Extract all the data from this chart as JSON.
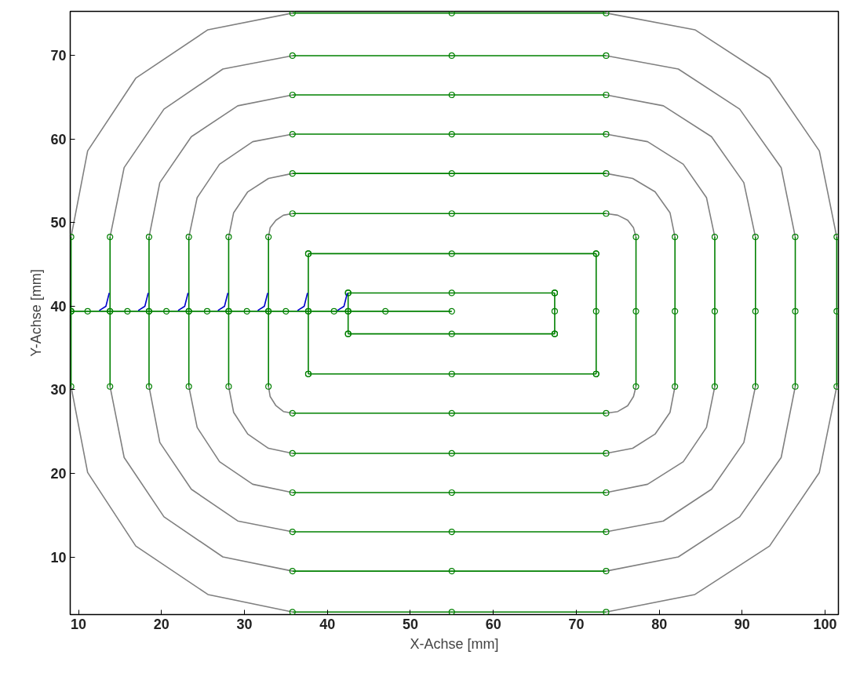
{
  "chart_data": {
    "type": "line",
    "xlabel": "X-Achse [mm]",
    "ylabel": "Y-Achse [mm]",
    "xlim": [
      9.0,
      101.6
    ],
    "ylim": [
      3.1,
      75.3
    ],
    "xticks": [
      10,
      20,
      30,
      40,
      50,
      60,
      70,
      80,
      90,
      100
    ],
    "yticks": [
      10,
      20,
      30,
      40,
      50,
      60,
      70
    ],
    "grid": false,
    "marker": "circle",
    "line_style": "solid",
    "series": [
      {
        "color": "#808080",
        "marker": "none",
        "x": [
          73.6,
          84.3,
          93.3,
          99.3,
          101.4
        ],
        "values": [
          75.1,
          73.1,
          67.3,
          58.6,
          48.3
        ]
      },
      {
        "color": "#808080",
        "marker": "none",
        "x": [
          101.4,
          99.3,
          93.3,
          84.3,
          73.6
        ],
        "values": [
          30.4,
          20.1,
          11.3,
          5.5,
          3.4
        ]
      },
      {
        "color": "#808080",
        "marker": "none",
        "x": [
          35.8,
          25.6,
          16.9,
          11.1,
          9.1
        ],
        "values": [
          3.4,
          5.5,
          11.3,
          20.1,
          30.4
        ]
      },
      {
        "color": "#808080",
        "marker": "none",
        "x": [
          9.1,
          11.1,
          16.9,
          25.6,
          35.8
        ],
        "values": [
          48.3,
          58.6,
          67.3,
          73.1,
          75.1
        ]
      },
      {
        "color": "#808080",
        "marker": "none",
        "x": [
          73.6,
          82.3,
          89.7,
          94.7,
          96.4
        ],
        "values": [
          70.0,
          68.4,
          63.6,
          56.6,
          48.3
        ]
      },
      {
        "color": "#808080",
        "marker": "none",
        "x": [
          96.4,
          94.7,
          89.7,
          82.3,
          73.6
        ],
        "values": [
          30.4,
          21.9,
          14.8,
          10.0,
          8.3
        ]
      },
      {
        "color": "#808080",
        "marker": "none",
        "x": [
          35.8,
          27.4,
          20.3,
          15.5,
          13.8
        ],
        "values": [
          8.3,
          10.0,
          14.8,
          21.9,
          30.4
        ]
      },
      {
        "color": "#808080",
        "marker": "none",
        "x": [
          13.8,
          15.5,
          20.3,
          27.4,
          35.8
        ],
        "values": [
          48.3,
          56.6,
          63.6,
          68.4,
          70.0
        ]
      },
      {
        "color": "#808080",
        "marker": "none",
        "x": [
          73.6,
          80.5,
          86.3,
          90.2,
          91.6
        ],
        "values": [
          65.3,
          64.0,
          60.3,
          54.8,
          48.3
        ]
      },
      {
        "color": "#808080",
        "marker": "none",
        "x": [
          91.6,
          90.2,
          86.3,
          80.5,
          73.6
        ],
        "values": [
          30.4,
          23.7,
          18.1,
          14.3,
          13.0
        ]
      },
      {
        "color": "#808080",
        "marker": "none",
        "x": [
          35.8,
          29.2,
          23.6,
          19.8,
          18.5
        ],
        "values": [
          13.0,
          14.3,
          18.1,
          23.7,
          30.4
        ]
      },
      {
        "color": "#808080",
        "marker": "none",
        "x": [
          18.5,
          19.8,
          23.6,
          29.2,
          35.8
        ],
        "values": [
          48.3,
          54.8,
          60.3,
          64.0,
          65.3
        ]
      },
      {
        "color": "#808080",
        "marker": "none",
        "x": [
          73.6,
          78.6,
          82.9,
          85.7,
          86.7
        ],
        "values": [
          60.6,
          59.7,
          57.0,
          53.0,
          48.3
        ]
      },
      {
        "color": "#808080",
        "marker": "none",
        "x": [
          86.7,
          85.7,
          82.9,
          78.6,
          73.6
        ],
        "values": [
          30.4,
          25.5,
          21.4,
          18.7,
          17.7
        ]
      },
      {
        "color": "#808080",
        "marker": "none",
        "x": [
          35.8,
          31.0,
          27.0,
          24.3,
          23.3
        ],
        "values": [
          17.7,
          18.7,
          21.4,
          25.5,
          30.4
        ]
      },
      {
        "color": "#808080",
        "marker": "none",
        "x": [
          23.3,
          24.3,
          27.0,
          31.0,
          35.8
        ],
        "values": [
          48.3,
          53.0,
          57.0,
          59.7,
          60.6
        ]
      },
      {
        "color": "#808080",
        "marker": "none",
        "x": [
          73.6,
          76.8,
          79.5,
          81.3,
          81.9
        ],
        "values": [
          55.9,
          55.3,
          53.7,
          51.2,
          48.3
        ]
      },
      {
        "color": "#808080",
        "marker": "none",
        "x": [
          81.9,
          81.3,
          79.5,
          76.8,
          73.6
        ],
        "values": [
          30.4,
          27.3,
          24.7,
          23.0,
          22.4
        ]
      },
      {
        "color": "#808080",
        "marker": "none",
        "x": [
          35.8,
          32.9,
          30.4,
          28.7,
          28.1
        ],
        "values": [
          22.4,
          23.0,
          24.7,
          27.3,
          30.4
        ]
      },
      {
        "color": "#808080",
        "marker": "none",
        "x": [
          28.1,
          28.7,
          30.4,
          32.9,
          35.8
        ],
        "values": [
          48.3,
          51.2,
          53.7,
          55.3,
          55.9
        ]
      },
      {
        "color": "#808080",
        "marker": "none",
        "x": [
          73.6,
          75.0,
          76.2,
          76.9,
          77.2
        ],
        "values": [
          51.1,
          50.9,
          50.3,
          49.4,
          48.3
        ]
      },
      {
        "color": "#808080",
        "marker": "none",
        "x": [
          77.2,
          76.9,
          76.2,
          75.0,
          73.6
        ],
        "values": [
          30.4,
          29.2,
          28.1,
          27.4,
          27.2
        ]
      },
      {
        "color": "#808080",
        "marker": "none",
        "x": [
          35.8,
          34.7,
          33.8,
          33.1,
          32.9
        ],
        "values": [
          27.2,
          27.4,
          28.1,
          29.2,
          30.4
        ]
      },
      {
        "color": "#808080",
        "marker": "none",
        "x": [
          32.9,
          33.1,
          33.8,
          34.7,
          35.8
        ],
        "values": [
          48.3,
          49.4,
          50.3,
          50.9,
          51.1
        ]
      },
      {
        "color": "#008000",
        "x": [
          35.8,
          55.0,
          73.6
        ],
        "values": [
          75.1,
          75.1,
          75.1
        ]
      },
      {
        "color": "#008000",
        "x": [
          35.8,
          55.0,
          73.6
        ],
        "values": [
          3.4,
          3.4,
          3.4
        ]
      },
      {
        "color": "#008000",
        "x": [
          9.1,
          9.1,
          9.1
        ],
        "values": [
          48.3,
          39.4,
          30.4
        ]
      },
      {
        "color": "#008000",
        "x": [
          101.4,
          101.4,
          101.4
        ],
        "values": [
          48.3,
          39.4,
          30.4
        ]
      },
      {
        "color": "#008000",
        "x": [
          35.8,
          55.0,
          73.6
        ],
        "values": [
          70.0,
          70.0,
          70.0
        ]
      },
      {
        "color": "#008000",
        "x": [
          35.8,
          55.0,
          73.6
        ],
        "values": [
          8.3,
          8.3,
          8.3
        ]
      },
      {
        "color": "#008000",
        "x": [
          13.8,
          13.8,
          13.8
        ],
        "values": [
          48.3,
          39.4,
          30.4
        ]
      },
      {
        "color": "#008000",
        "x": [
          96.4,
          96.4,
          96.4
        ],
        "values": [
          48.3,
          39.4,
          30.4
        ]
      },
      {
        "color": "#008000",
        "x": [
          35.8,
          55.0,
          73.6
        ],
        "values": [
          65.3,
          65.3,
          65.3
        ]
      },
      {
        "color": "#008000",
        "x": [
          35.8,
          55.0,
          73.6
        ],
        "values": [
          13.0,
          13.0,
          13.0
        ]
      },
      {
        "color": "#008000",
        "x": [
          18.5,
          18.5,
          18.5
        ],
        "values": [
          48.3,
          39.4,
          30.4
        ]
      },
      {
        "color": "#008000",
        "x": [
          91.6,
          91.6,
          91.6
        ],
        "values": [
          48.3,
          39.4,
          30.4
        ]
      },
      {
        "color": "#008000",
        "x": [
          35.8,
          55.0,
          73.6
        ],
        "values": [
          60.6,
          60.6,
          60.6
        ]
      },
      {
        "color": "#008000",
        "x": [
          35.8,
          55.0,
          73.6
        ],
        "values": [
          17.7,
          17.7,
          17.7
        ]
      },
      {
        "color": "#008000",
        "x": [
          23.3,
          23.3,
          23.3
        ],
        "values": [
          48.3,
          39.4,
          30.4
        ]
      },
      {
        "color": "#008000",
        "x": [
          86.7,
          86.7,
          86.7
        ],
        "values": [
          48.3,
          39.4,
          30.4
        ]
      },
      {
        "color": "#008000",
        "x": [
          35.8,
          55.0,
          73.6
        ],
        "values": [
          55.9,
          55.9,
          55.9
        ]
      },
      {
        "color": "#008000",
        "x": [
          35.8,
          55.0,
          73.6
        ],
        "values": [
          22.4,
          22.4,
          22.4
        ]
      },
      {
        "color": "#008000",
        "x": [
          28.1,
          28.1,
          28.1
        ],
        "values": [
          48.3,
          39.4,
          30.4
        ]
      },
      {
        "color": "#008000",
        "x": [
          81.9,
          81.9,
          81.9
        ],
        "values": [
          48.3,
          39.4,
          30.4
        ]
      },
      {
        "color": "#008000",
        "x": [
          35.8,
          55.0,
          73.6
        ],
        "values": [
          51.1,
          51.1,
          51.1
        ]
      },
      {
        "color": "#008000",
        "x": [
          35.8,
          55.0,
          73.6
        ],
        "values": [
          27.2,
          27.2,
          27.2
        ]
      },
      {
        "color": "#008000",
        "x": [
          32.9,
          32.9,
          32.9
        ],
        "values": [
          48.3,
          39.4,
          30.4
        ]
      },
      {
        "color": "#008000",
        "x": [
          77.2,
          77.2,
          77.2
        ],
        "values": [
          48.3,
          39.4,
          30.4
        ]
      },
      {
        "color": "#008000",
        "x": [
          37.7,
          55.0,
          72.4
        ],
        "values": [
          46.3,
          46.3,
          46.3
        ]
      },
      {
        "color": "#008000",
        "x": [
          72.4,
          72.4,
          72.4
        ],
        "values": [
          46.3,
          39.4,
          31.9
        ]
      },
      {
        "color": "#008000",
        "x": [
          72.4,
          55.0,
          37.7
        ],
        "values": [
          31.9,
          31.9,
          31.9
        ]
      },
      {
        "color": "#008000",
        "x": [
          37.7,
          37.7,
          37.7
        ],
        "values": [
          31.9,
          39.4,
          46.3
        ]
      },
      {
        "color": "#008000",
        "x": [
          42.5,
          55.0,
          67.4
        ],
        "values": [
          41.6,
          41.6,
          41.6
        ]
      },
      {
        "color": "#008000",
        "x": [
          67.4,
          67.4,
          67.4
        ],
        "values": [
          41.6,
          39.4,
          36.7
        ]
      },
      {
        "color": "#008000",
        "x": [
          67.4,
          55.0,
          42.5
        ],
        "values": [
          36.7,
          36.7,
          36.7
        ]
      },
      {
        "color": "#008000",
        "x": [
          42.5,
          42.5,
          42.5
        ],
        "values": [
          36.7,
          39.4,
          41.6
        ]
      },
      {
        "color": "#008000",
        "x": [
          9.1,
          11.1,
          13.8,
          15.9,
          18.5,
          20.6,
          23.3,
          25.5,
          28.1,
          30.3,
          32.9,
          35.0,
          37.7,
          40.8,
          42.5,
          47.0,
          55.0
        ],
        "values": [
          39.4,
          39.4,
          39.4,
          39.4,
          39.4,
          39.4,
          39.4,
          39.4,
          39.4,
          39.4,
          39.4,
          39.4,
          39.4,
          39.4,
          39.4,
          39.4,
          39.4
        ]
      },
      {
        "color": "#0000cc",
        "marker": "none",
        "x": [
          12.5,
          13.3,
          13.7
        ],
        "values": [
          39.5,
          40.0,
          41.6
        ]
      },
      {
        "color": "#0000cc",
        "marker": "none",
        "x": [
          17.2,
          18.0,
          18.4
        ],
        "values": [
          39.5,
          40.0,
          41.6
        ]
      },
      {
        "color": "#0000cc",
        "marker": "none",
        "x": [
          22.0,
          22.8,
          23.2
        ],
        "values": [
          39.5,
          40.0,
          41.6
        ]
      },
      {
        "color": "#0000cc",
        "marker": "none",
        "x": [
          26.8,
          27.6,
          28.0
        ],
        "values": [
          39.5,
          40.0,
          41.6
        ]
      },
      {
        "color": "#0000cc",
        "marker": "none",
        "x": [
          31.6,
          32.4,
          32.8
        ],
        "values": [
          39.5,
          40.0,
          41.6
        ]
      },
      {
        "color": "#0000cc",
        "marker": "none",
        "x": [
          36.4,
          37.2,
          37.6
        ],
        "values": [
          39.5,
          40.0,
          41.6
        ]
      },
      {
        "color": "#0000cc",
        "marker": "none",
        "x": [
          41.2,
          42.0,
          42.4
        ],
        "values": [
          39.5,
          40.0,
          41.6
        ]
      }
    ]
  }
}
